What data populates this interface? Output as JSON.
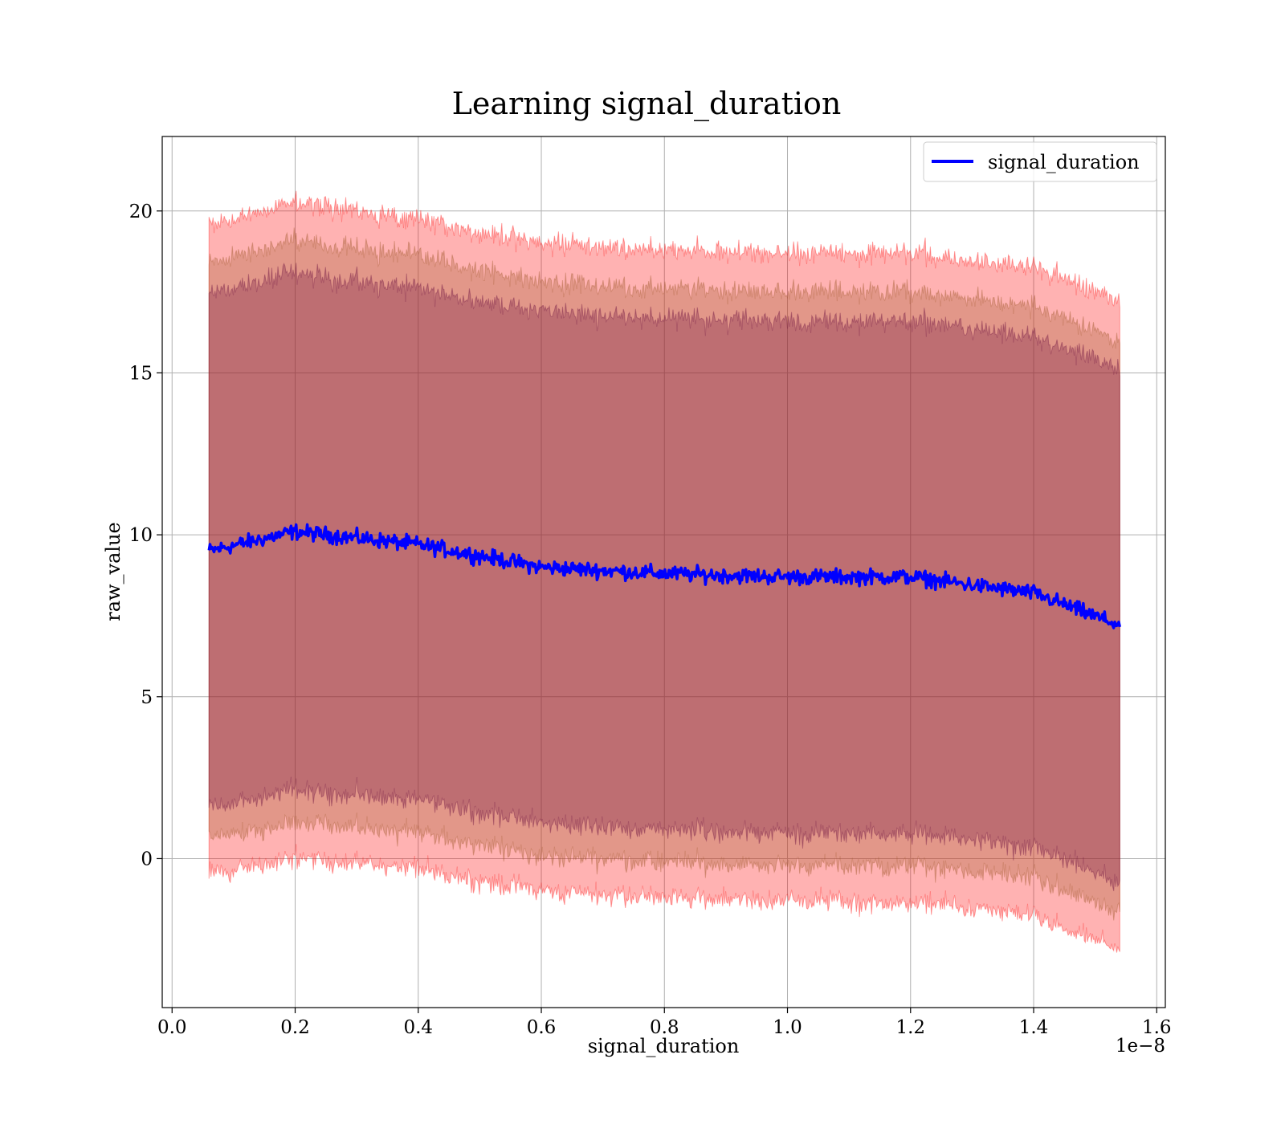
{
  "chart_data": {
    "type": "line",
    "title": "Learning signal_duration",
    "xlabel": "signal_duration",
    "ylabel": "raw_value",
    "x_offset_text": "1e−8",
    "xlim": [
      -0.016,
      1.614
    ],
    "ylim": [
      -4.6,
      22.3
    ],
    "x_ticks": [
      0.0,
      0.2,
      0.4,
      0.6,
      0.8,
      1.0,
      1.2,
      1.4,
      1.6
    ],
    "x_tick_labels": [
      "0.0",
      "0.2",
      "0.4",
      "0.6",
      "0.8",
      "1.0",
      "1.2",
      "1.4",
      "1.6"
    ],
    "y_ticks": [
      0,
      5,
      10,
      15,
      20
    ],
    "y_tick_labels": [
      "0",
      "5",
      "10",
      "15",
      "20"
    ],
    "grid": true,
    "legend_position": "top-right",
    "colors": {
      "mean_line": "#0000ff",
      "band_outer": "#ff0000",
      "band_middle": "#a05a2c",
      "band_inner": "#6b0f3f"
    },
    "x_range_data": [
      0.06,
      1.54
    ],
    "series": [
      {
        "name": "signal_duration",
        "role": "mean",
        "x": [
          0.06,
          0.2,
          0.4,
          0.6,
          0.8,
          1.0,
          1.2,
          1.4,
          1.54
        ],
        "y": [
          9.5,
          10.1,
          9.7,
          9.0,
          8.8,
          8.7,
          8.7,
          8.2,
          7.2
        ]
      }
    ],
    "bands": [
      {
        "level": "outer",
        "x": [
          0.06,
          0.2,
          0.4,
          0.6,
          0.8,
          1.0,
          1.2,
          1.4,
          1.54
        ],
        "upper": [
          19.5,
          20.3,
          19.7,
          19.0,
          18.8,
          18.7,
          18.7,
          18.2,
          17.2
        ],
        "lower": [
          -0.5,
          0.0,
          -0.3,
          -1.0,
          -1.2,
          -1.3,
          -1.3,
          -1.8,
          -2.8
        ]
      },
      {
        "level": "middle",
        "x": [
          0.06,
          0.2,
          0.4,
          0.6,
          0.8,
          1.0,
          1.2,
          1.4,
          1.54
        ],
        "upper": [
          18.4,
          19.1,
          18.6,
          17.8,
          17.6,
          17.5,
          17.5,
          17.0,
          16.0
        ],
        "lower": [
          0.6,
          1.1,
          0.8,
          0.1,
          -0.1,
          -0.2,
          -0.2,
          -0.6,
          -1.7
        ]
      },
      {
        "level": "inner",
        "x": [
          0.06,
          0.2,
          0.4,
          0.6,
          0.8,
          1.0,
          1.2,
          1.4,
          1.54
        ],
        "upper": [
          17.4,
          18.1,
          17.6,
          16.9,
          16.7,
          16.6,
          16.6,
          16.1,
          15.1
        ],
        "lower": [
          1.6,
          2.1,
          1.8,
          1.1,
          0.9,
          0.8,
          0.8,
          0.3,
          -0.7
        ]
      }
    ]
  }
}
